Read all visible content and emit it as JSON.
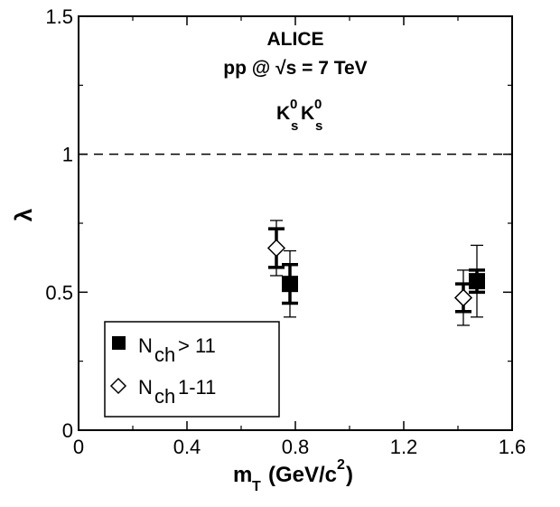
{
  "chart_data": {
    "type": "scatter",
    "xlabel": "m",
    "xlabel_sub": "T",
    "xlabel_unit": "(GeV/c",
    "xlabel_unit_sup": "2",
    "xlabel_unit_end": ")",
    "ylabel": "λ",
    "xlim": [
      0,
      1.6
    ],
    "ylim": [
      0,
      1.5
    ],
    "x_ticks": [
      "0",
      "0.4",
      "0.8",
      "1.2",
      "1.6"
    ],
    "x_tick_values": [
      0,
      0.4,
      0.8,
      1.2,
      1.6
    ],
    "y_ticks": [
      "0",
      "0.5",
      "1",
      "1.5"
    ],
    "y_tick_values": [
      0,
      0.5,
      1,
      1.5
    ],
    "reference_line_y": 1,
    "annotations": {
      "experiment": "ALICE",
      "system": "pp @ √s = 7 TeV",
      "pair_base": "K",
      "pair_sup": "0",
      "pair_sub": "s"
    },
    "legend_position": "bottom-left",
    "series": [
      {
        "name_main": "N",
        "name_sub": "ch",
        "name_rest": "> 11",
        "marker": "filled-square",
        "color": "#000000",
        "points": [
          {
            "x": 0.78,
            "y": 0.53,
            "stat_err": 0.07,
            "sys_err": 0.12
          },
          {
            "x": 1.47,
            "y": 0.54,
            "stat_err": 0.04,
            "sys_err": 0.13
          }
        ]
      },
      {
        "name_main": "N",
        "name_sub": "ch",
        "name_rest": "1-11",
        "marker": "open-diamond",
        "color": "#000000",
        "points": [
          {
            "x": 0.73,
            "y": 0.66,
            "stat_err": 0.07,
            "sys_err": 0.1
          },
          {
            "x": 1.42,
            "y": 0.48,
            "stat_err": 0.05,
            "sys_err": 0.1
          }
        ]
      }
    ]
  }
}
